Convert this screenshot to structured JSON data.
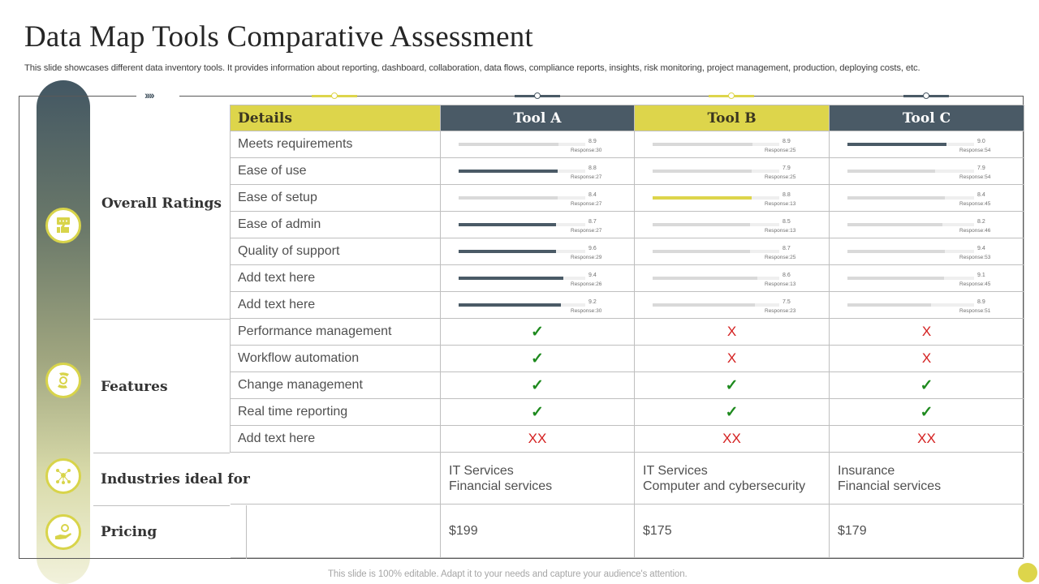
{
  "header": {
    "title": "Data Map Tools Comparative Assessment",
    "subtitle": "This slide showcases different data inventory tools. It provides information about reporting, dashboard, collaboration, data flows, compliance reports, insights, risk monitoring, project management, production, deploying costs, etc.",
    "chevrons": "››››"
  },
  "colors": {
    "accent_yellow": "#ddd54b",
    "accent_slate": "#4a5a66",
    "check_green": "#1e8a1e",
    "cross_red": "#d42020",
    "bar_light": "#d9d9d9"
  },
  "sections": {
    "overall_ratings": "Overall Ratings",
    "features": "Features",
    "industries": "Industries ideal for",
    "pricing": "Pricing"
  },
  "icons": {
    "overall_ratings": "thumbs-up-chat-icon",
    "features": "hands-gear-icon",
    "industries": "network-people-icon",
    "pricing": "hand-gear-icon"
  },
  "table": {
    "headers": [
      "Details",
      "Tool A",
      "Tool B",
      "Tool C"
    ],
    "ratings": [
      {
        "label": "Meets requirements",
        "tools": [
          {
            "value": "8.9",
            "response": "Response:30",
            "pct": 79,
            "style": "light"
          },
          {
            "value": "8.9",
            "response": "Response:25",
            "pct": 79,
            "style": "light"
          },
          {
            "value": "9.0",
            "response": "Response:54",
            "pct": 78,
            "style": "dark"
          }
        ]
      },
      {
        "label": "Ease of use",
        "tools": [
          {
            "value": "8.8",
            "response": "Response:27",
            "pct": 78,
            "style": "dark"
          },
          {
            "value": "7.9",
            "response": "Response:25",
            "pct": 78,
            "style": "light"
          },
          {
            "value": "7.9",
            "response": "Response:54",
            "pct": 69,
            "style": "light"
          }
        ]
      },
      {
        "label": "Ease of setup",
        "tools": [
          {
            "value": "8.4",
            "response": "Response:27",
            "pct": 78,
            "style": "light"
          },
          {
            "value": "8.8",
            "response": "Response:13",
            "pct": 78,
            "style": "yellow"
          },
          {
            "value": "8.4",
            "response": "Response:45",
            "pct": 77,
            "style": "light"
          }
        ]
      },
      {
        "label": "Ease of admin",
        "tools": [
          {
            "value": "8.7",
            "response": "Response:27",
            "pct": 77,
            "style": "dark"
          },
          {
            "value": "8.5",
            "response": "Response:13",
            "pct": 77,
            "style": "light"
          },
          {
            "value": "8.2",
            "response": "Response:46",
            "pct": 75,
            "style": "light"
          }
        ]
      },
      {
        "label": "Quality of support",
        "tools": [
          {
            "value": "9.6",
            "response": "Response:29",
            "pct": 77,
            "style": "dark"
          },
          {
            "value": "8.7",
            "response": "Response:25",
            "pct": 77,
            "style": "light"
          },
          {
            "value": "9.4",
            "response": "Response:53",
            "pct": 77,
            "style": "light"
          }
        ]
      },
      {
        "label": "Add text here",
        "tools": [
          {
            "value": "9.4",
            "response": "Response:26",
            "pct": 83,
            "style": "dark"
          },
          {
            "value": "8.6",
            "response": "Response:13",
            "pct": 83,
            "style": "light"
          },
          {
            "value": "9.1",
            "response": "Response:45",
            "pct": 76,
            "style": "light"
          }
        ]
      },
      {
        "label": "Add text here",
        "tools": [
          {
            "value": "9.2",
            "response": "Response:30",
            "pct": 81,
            "style": "dark"
          },
          {
            "value": "7.5",
            "response": "Response:23",
            "pct": 81,
            "style": "light"
          },
          {
            "value": "8.9",
            "response": "Response:51",
            "pct": 66,
            "style": "light"
          }
        ]
      }
    ],
    "features": [
      {
        "label": "Performance management",
        "marks": [
          "check",
          "cross",
          "cross"
        ]
      },
      {
        "label": "Workflow automation",
        "marks": [
          "check",
          "cross",
          "cross"
        ]
      },
      {
        "label": "Change management",
        "marks": [
          "check",
          "check",
          "check"
        ]
      },
      {
        "label": "Real time reporting",
        "marks": [
          "check",
          "check",
          "check"
        ]
      },
      {
        "label": "Add text here",
        "marks": [
          "xx",
          "xx",
          "xx"
        ]
      }
    ],
    "industries": [
      {
        "line1": "IT Services",
        "line2": "Financial services"
      },
      {
        "line1": "IT Services",
        "line2": "Computer and cybersecurity"
      },
      {
        "line1": "Insurance",
        "line2": "Financial services"
      }
    ],
    "pricing": [
      "$199",
      "$175",
      "$179"
    ]
  },
  "symbols": {
    "check": "✓",
    "cross": "X",
    "xx": "XX"
  },
  "footer": "This slide is 100% editable. Adapt it to your needs and capture your audience's attention."
}
